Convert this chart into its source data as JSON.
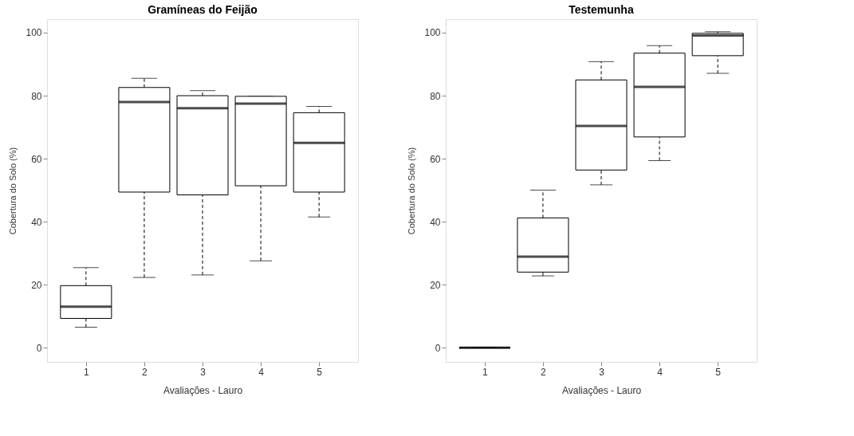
{
  "chart_data": [
    {
      "type": "box",
      "title": "Gramíneas do Feijão",
      "xlabel": "Avaliações - Lauro",
      "ylabel": "Cobertura do Solo (%)",
      "categories": [
        "1",
        "2",
        "3",
        "4",
        "5"
      ],
      "ylim": [
        -4.5,
        104.3
      ],
      "yticks": [
        0,
        20,
        40,
        60,
        80,
        100
      ],
      "grid": false,
      "boxes": [
        {
          "low": 6.5,
          "q1": 9.3,
          "median": 13,
          "q3": 19.7,
          "high": 25.4
        },
        {
          "low": 22.3,
          "q1": 49.4,
          "median": 78,
          "q3": 82.6,
          "high": 85.5
        },
        {
          "low": 23.1,
          "q1": 48.5,
          "median": 76,
          "q3": 80,
          "high": 81.6
        },
        {
          "low": 27.6,
          "q1": 51.4,
          "median": 77.5,
          "q3": 79.8,
          "high": 79.8
        },
        {
          "low": 41.5,
          "q1": 49.4,
          "median": 65,
          "q3": 74.6,
          "high": 76.6
        }
      ]
    },
    {
      "type": "box",
      "title": "Testemunha",
      "xlabel": "Avaliações - Lauro",
      "ylabel": "Cobertura do Solo (%)",
      "categories": [
        "1",
        "2",
        "3",
        "4",
        "5"
      ],
      "ylim": [
        -4.5,
        104.3
      ],
      "yticks": [
        0,
        20,
        40,
        60,
        80,
        100
      ],
      "grid": false,
      "boxes": [
        {
          "low": 0,
          "q1": 0,
          "median": 0,
          "q3": 0,
          "high": 0
        },
        {
          "low": 22.8,
          "q1": 24,
          "median": 28.9,
          "q3": 41.2,
          "high": 50
        },
        {
          "low": 51.7,
          "q1": 56.4,
          "median": 70.4,
          "q3": 85,
          "high": 90.8
        },
        {
          "low": 59.4,
          "q1": 66.9,
          "median": 82.8,
          "q3": 93.5,
          "high": 95.9
        },
        {
          "low": 87.1,
          "q1": 92.7,
          "median": 99.1,
          "q3": 99.8,
          "high": 100.3
        }
      ]
    }
  ]
}
